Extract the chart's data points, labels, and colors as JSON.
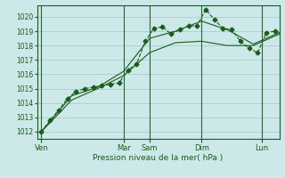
{
  "bg_color": "#cce8e8",
  "grid_color": "#aacccc",
  "line_color": "#1a5c1a",
  "xlim": [
    0,
    28
  ],
  "ylim": [
    1011.5,
    1020.8
  ],
  "yticks": [
    1012,
    1013,
    1014,
    1015,
    1016,
    1017,
    1018,
    1019,
    1020
  ],
  "xlabel": "Pression niveau de la mer( hPa )",
  "day_labels": [
    "Ven",
    "Mar",
    "Sam",
    "Dim",
    "Lun"
  ],
  "day_positions": [
    0.5,
    10,
    13,
    19,
    26
  ],
  "vline_positions": [
    0.5,
    10,
    13,
    19,
    26
  ],
  "series": [
    {
      "x": [
        0.5,
        1.5,
        2.5,
        3.5,
        4.5,
        5.5,
        6.5,
        7.5,
        8.5,
        9.5,
        10.5,
        11.5,
        12.5,
        13.5,
        14.5,
        15.5,
        16.5,
        17.5,
        18.5,
        19.5,
        20.5,
        21.5,
        22.5,
        23.5,
        24.5,
        25.5,
        26.5,
        27.5
      ],
      "y": [
        1012.0,
        1012.8,
        1013.5,
        1014.3,
        1014.8,
        1015.0,
        1015.1,
        1015.2,
        1015.3,
        1015.4,
        1016.3,
        1016.7,
        1018.3,
        1019.2,
        1019.3,
        1018.8,
        1019.1,
        1019.35,
        1019.4,
        1020.5,
        1019.8,
        1019.2,
        1019.1,
        1018.3,
        1017.8,
        1017.5,
        1018.9,
        1019.0
      ],
      "linestyle": "--",
      "marker": "D",
      "markersize": 2.5
    },
    {
      "x": [
        0.5,
        4.0,
        7.0,
        10.0,
        13.0,
        16.0,
        19.0,
        22.0,
        25.0,
        28.0
      ],
      "y": [
        1012.0,
        1014.5,
        1015.1,
        1016.2,
        1018.5,
        1019.0,
        1019.7,
        1019.1,
        1018.1,
        1018.9
      ],
      "linestyle": "-",
      "marker": null,
      "markersize": 0
    },
    {
      "x": [
        0.5,
        4.0,
        7.0,
        10.0,
        13.0,
        16.0,
        19.0,
        22.0,
        25.0,
        28.0
      ],
      "y": [
        1012.0,
        1014.2,
        1015.0,
        1015.9,
        1017.5,
        1018.2,
        1018.3,
        1018.0,
        1018.0,
        1018.8
      ],
      "linestyle": "-",
      "marker": null,
      "markersize": 0
    }
  ]
}
